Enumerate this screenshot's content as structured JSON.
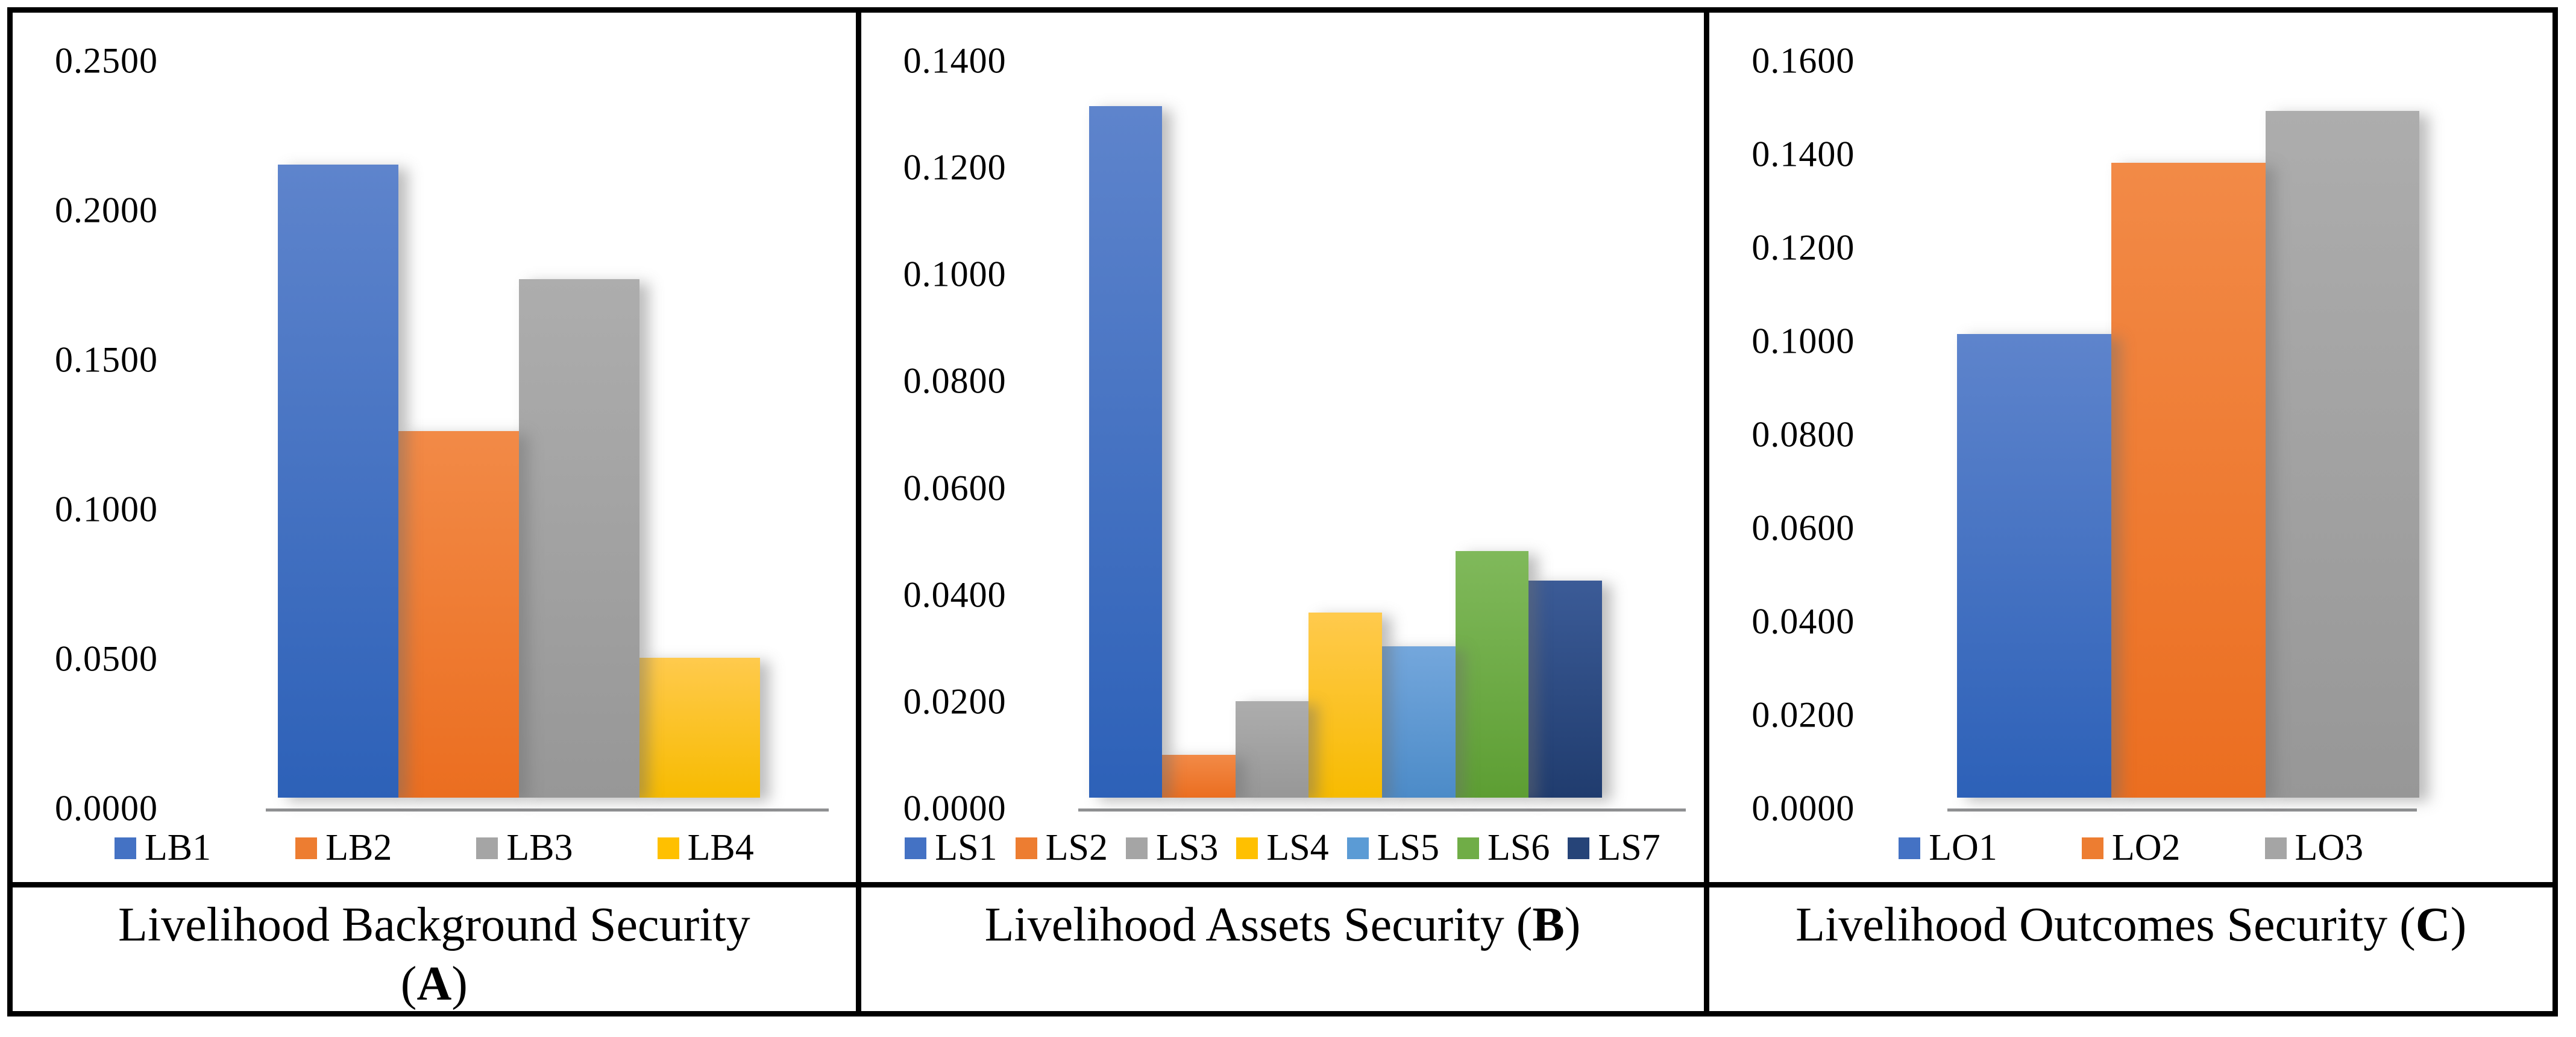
{
  "figure": {
    "description": "Three-panel bar chart figure comparing livelihood security index values",
    "border_color": "#000000",
    "axis_line_color": "#8f9092"
  },
  "chart_data": [
    {
      "type": "bar",
      "title": "Livelihood Background Security (A)",
      "caption": {
        "prefix": "Livelihood Background Security (",
        "bold": "A",
        "suffix": ")"
      },
      "categories": [
        "LB1",
        "LB2",
        "LB3",
        "LB4"
      ],
      "values": [
        0.2117,
        0.1225,
        0.1734,
        0.0467
      ],
      "bar_colors": [
        "#4472C4",
        "#ED7D31",
        "#A5A5A5",
        "#FFC000"
      ],
      "bar_gradients": [
        [
          "#5E84CC",
          "#2D61B8"
        ],
        [
          "#F28A47",
          "#EB6E20"
        ],
        [
          "#ADADAD",
          "#979797"
        ],
        [
          "#FFCA4D",
          "#F7BB00"
        ]
      ],
      "xlabel": "",
      "ylabel": "",
      "ylim": [
        0,
        0.25
      ],
      "ytick_step": 0.05,
      "ytick_labels": [
        "0.2500",
        "0.2000",
        "0.1500",
        "0.1000",
        "0.0500",
        "0.0000"
      ],
      "grid": false,
      "legend_position": "bottom"
    },
    {
      "type": "bar",
      "title": "Livelihood Assets Security (B)",
      "caption": {
        "prefix": "Livelihood Assets Security (",
        "bold": "B",
        "suffix": ")"
      },
      "categories": [
        "LS1",
        "LS2",
        "LS3",
        "LS4",
        "LS5",
        "LS6",
        "LS7"
      ],
      "values": [
        0.1295,
        0.008,
        0.0181,
        0.0347,
        0.0283,
        0.0462,
        0.0407
      ],
      "bar_colors": [
        "#4472C4",
        "#ED7D31",
        "#A5A5A5",
        "#FFC000",
        "#5B9BD5",
        "#70AD47",
        "#264478"
      ],
      "bar_gradients": [
        [
          "#5E84CC",
          "#2D61B8"
        ],
        [
          "#F28A47",
          "#EB6E20"
        ],
        [
          "#ADADAD",
          "#979797"
        ],
        [
          "#FFCA4D",
          "#F7BB00"
        ],
        [
          "#74A7DC",
          "#4C8BC8"
        ],
        [
          "#80B95B",
          "#5D9E33"
        ],
        [
          "#3B5B97",
          "#203C6E"
        ]
      ],
      "xlabel": "",
      "ylabel": "",
      "ylim": [
        0,
        0.14
      ],
      "ytick_step": 0.02,
      "ytick_labels": [
        "0.1400",
        "0.1200",
        "0.1000",
        "0.0800",
        "0.0600",
        "0.0400",
        "0.0200",
        "0.0000"
      ],
      "grid": false,
      "legend_position": "bottom"
    },
    {
      "type": "bar",
      "title": "Livelihood Outcomes Security (C)",
      "caption": {
        "prefix": "Livelihood Outcomes Security (",
        "bold": "C",
        "suffix": ")"
      },
      "categories": [
        "LO1",
        "LO2",
        "LO3"
      ],
      "values": [
        0.0992,
        0.1359,
        0.147
      ],
      "bar_colors": [
        "#4472C4",
        "#ED7D31",
        "#A5A5A5"
      ],
      "bar_gradients": [
        [
          "#5E84CC",
          "#2D61B8"
        ],
        [
          "#F28A47",
          "#EB6E20"
        ],
        [
          "#ADADAD",
          "#979797"
        ]
      ],
      "xlabel": "",
      "ylabel": "",
      "ylim": [
        0,
        0.16
      ],
      "ytick_step": 0.02,
      "ytick_labels": [
        "0.1600",
        "0.1400",
        "0.1200",
        "0.1000",
        "0.0800",
        "0.0600",
        "0.0400",
        "0.0200",
        "0.0000"
      ],
      "grid": false,
      "legend_position": "bottom"
    }
  ]
}
